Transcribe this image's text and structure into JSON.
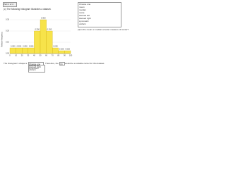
{
  "header": {
    "part_label": "Part 1 of 4"
  },
  "question": "(c) The following histogram illustrates a dataset.",
  "chart_data": {
    "type": "histogram",
    "ylabel": "Relative frequency",
    "bins": [
      0,
      10,
      20,
      30,
      40,
      50,
      60,
      70,
      80,
      90,
      100
    ],
    "values": [
      0.05,
      0.05,
      0.05,
      0.05,
      0.2,
      0.3,
      0.2,
      0.05,
      0.025,
      0.025
    ],
    "value_labels": [
      "0.050",
      "0.050",
      "0.050",
      "0.050",
      "0.200",
      "0.300",
      "0.200",
      "0.050",
      "0.025",
      "0.025"
    ],
    "color": "#f7e34a",
    "edge": "#c9a800",
    "ylim": [
      0,
      0.35
    ],
    "yticks": [
      {
        "value": 0,
        "label": "0.00"
      },
      {
        "value": 0.1,
        "label": "0.10"
      },
      {
        "value": 0.2,
        "label": "0.20"
      },
      {
        "value": 0.3,
        "label": "0.30"
      }
    ],
    "xlim": [
      0,
      100
    ]
  },
  "side_options": [
    "Choose one",
    "mean",
    "median",
    "mode",
    "skewed left",
    "skewed right",
    "symmetric",
    "uniform"
  ],
  "side_text": "(d) Is the mean or median a better measure of center?",
  "prompt": {
    "before": "The histogram's shape is",
    "select": "Choose one",
    "after": "Therefore, the",
    "select2": "(b)",
    "tail": "would be a suitable center for this dataset."
  },
  "dropdown": [
    "skewed left",
    "skewed right",
    "symmetric",
    "uniform"
  ]
}
